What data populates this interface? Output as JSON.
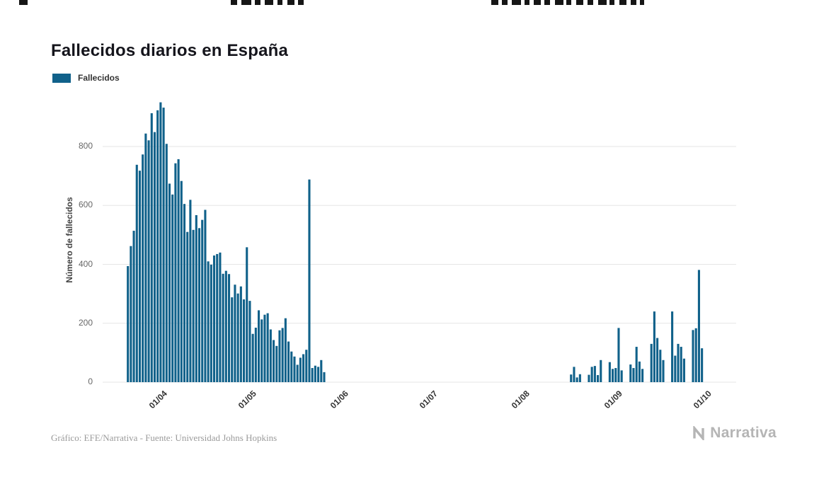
{
  "title": "Fallecidos diarios en España",
  "legend": {
    "label": "Fallecidos",
    "color": "#10618a"
  },
  "footer": {
    "credit": "Gráfico: EFE/Narrativa - Fuente: Universidad Johns Hopkins",
    "brand": "Narrativa"
  },
  "top_artifacts": [
    [
      27,
      12
    ],
    [
      326,
      9
    ],
    [
      341,
      14
    ],
    [
      360,
      8
    ],
    [
      374,
      12
    ],
    [
      392,
      7
    ],
    [
      406,
      10
    ],
    [
      421,
      8
    ],
    [
      694,
      10
    ],
    [
      709,
      8
    ],
    [
      723,
      13
    ],
    [
      741,
      7
    ],
    [
      754,
      10
    ],
    [
      769,
      8
    ],
    [
      784,
      12
    ],
    [
      800,
      7
    ],
    [
      814,
      10
    ],
    [
      830,
      8
    ],
    [
      845,
      12
    ],
    [
      861,
      7
    ],
    [
      875,
      10
    ],
    [
      891,
      8
    ],
    [
      904,
      6
    ]
  ],
  "chart_data": {
    "type": "bar",
    "title": "Fallecidos diarios en España",
    "series_name": "Fallecidos",
    "bar_color": "#10618a",
    "xlabel": "",
    "ylabel": "Número de fallecidos",
    "ylim": [
      0,
      961
    ],
    "yticks": [
      0,
      200,
      400,
      600,
      800
    ],
    "grid": "horizontal",
    "legend_position": "top-left",
    "start_date": "2020-03-22",
    "end_date": "2020-10-01",
    "axis_start_date": "2020-03-14",
    "axis_end_date": "2020-10-13",
    "xticks": [
      {
        "date": "2020-04-01",
        "label": "01/04"
      },
      {
        "date": "2020-05-01",
        "label": "01/05"
      },
      {
        "date": "2020-06-01",
        "label": "01/06"
      },
      {
        "date": "2020-07-01",
        "label": "01/07"
      },
      {
        "date": "2020-08-01",
        "label": "01/08"
      },
      {
        "date": "2020-09-01",
        "label": "01/09"
      },
      {
        "date": "2020-10-01",
        "label": "01/10"
      }
    ],
    "values": [
      394,
      462,
      514,
      738,
      718,
      773,
      844,
      821,
      913,
      849,
      923,
      950,
      932,
      809,
      674,
      637,
      743,
      757,
      683,
      605,
      510,
      619,
      517,
      567,
      523,
      551,
      585,
      410,
      399,
      430,
      435,
      440,
      368,
      378,
      367,
      288,
      331,
      301,
      325,
      281,
      458,
      276,
      164,
      185,
      244,
      213,
      229,
      234,
      179,
      143,
      123,
      176,
      184,
      217,
      138,
      104,
      87,
      59,
      83,
      95,
      110,
      688,
      48,
      56,
      52,
      75,
      34,
      0,
      0,
      0,
      0,
      0,
      0,
      0,
      0,
      0,
      0,
      0,
      0,
      0,
      0,
      0,
      0,
      0,
      0,
      0,
      0,
      0,
      0,
      0,
      0,
      0,
      0,
      0,
      0,
      0,
      0,
      0,
      0,
      0,
      0,
      0,
      0,
      0,
      0,
      0,
      0,
      0,
      0,
      0,
      0,
      0,
      0,
      0,
      0,
      0,
      0,
      0,
      0,
      0,
      0,
      0,
      0,
      0,
      0,
      0,
      0,
      0,
      0,
      0,
      0,
      0,
      0,
      0,
      0,
      0,
      0,
      0,
      0,
      0,
      0,
      0,
      0,
      0,
      0,
      0,
      0,
      0,
      0,
      26,
      52,
      16,
      27,
      0,
      0,
      25,
      52,
      55,
      24,
      75,
      0,
      0,
      68,
      45,
      48,
      184,
      40,
      0,
      0,
      60,
      48,
      120,
      70,
      45,
      0,
      0,
      130,
      240,
      150,
      110,
      75,
      0,
      0,
      240,
      90,
      130,
      120,
      80,
      0,
      0,
      177,
      183,
      381,
      115
    ]
  }
}
